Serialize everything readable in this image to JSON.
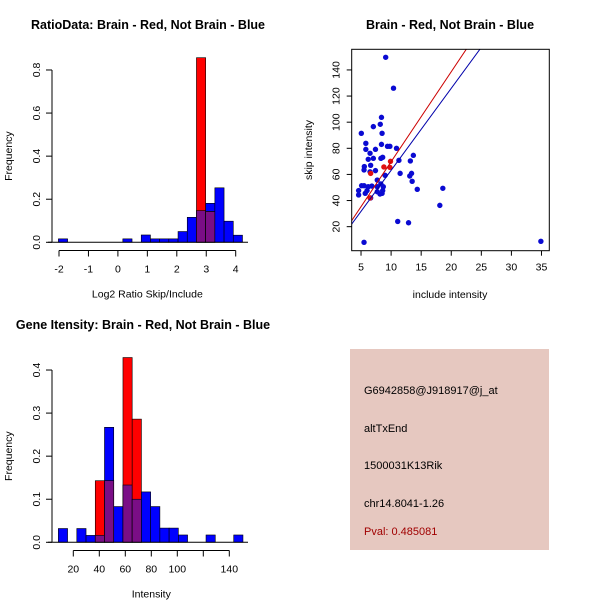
{
  "colors": {
    "blue": "#0000FF",
    "red": "#FF0000",
    "overlap": "#7A0E86",
    "scatter_blue": "#0A0AD2",
    "scatter_red": "#E01010",
    "line_red": "#CC0000",
    "line_blue": "#0000AA",
    "info_bg": "#E6C8C0",
    "pval": "#A00000"
  },
  "chart_data": [
    {
      "type": "bar",
      "subtype": "histogram-overlay",
      "title": "RatioData: Brain - Red, Not Brain - Blue",
      "xlabel": "Log2 Ratio Skip/Include",
      "ylabel": "Frequency",
      "xlim": [
        -2.2,
        4.4
      ],
      "ylim": [
        0,
        0.86
      ],
      "xticks": [
        -2,
        -1,
        0,
        1,
        2,
        3,
        4
      ],
      "yticks": [
        0.0,
        0.2,
        0.4,
        0.6,
        0.8
      ],
      "ytick_labels": [
        "0.0",
        "0.2",
        "0.4",
        "0.6",
        "0.8"
      ],
      "bin_start": -2.02,
      "bin_width": 0.3125,
      "series": [
        {
          "name": "Not Brain",
          "color": "blue",
          "values": [
            0.016,
            0,
            0,
            0,
            0,
            0,
            0,
            0.016,
            0,
            0.034,
            0.016,
            0.016,
            0.016,
            0.05,
            0.116,
            0.147,
            0.181,
            0.253,
            0.098,
            0.033
          ]
        },
        {
          "name": "Brain",
          "color": "red",
          "values": [
            0,
            0,
            0,
            0,
            0,
            0,
            0,
            0,
            0,
            0,
            0,
            0,
            0,
            0,
            0,
            0.857,
            0.143,
            0,
            0,
            0
          ]
        }
      ]
    },
    {
      "type": "scatter",
      "title": "Brain - Red, Not Brain - Blue",
      "xlabel": "include intensity",
      "ylabel": "skip intensity",
      "xlim": [
        3.45,
        36.3
      ],
      "ylim": [
        1.6,
        155.8
      ],
      "xticks": [
        5,
        10,
        15,
        20,
        25,
        30,
        35
      ],
      "yticks": [
        20,
        40,
        60,
        80,
        100,
        120,
        140
      ],
      "series": [
        {
          "name": "Not Brain",
          "color": "blue",
          "points": [
            [
              9.1,
              149.7
            ],
            [
              10.4,
              126
            ],
            [
              5.05,
              91.5
            ],
            [
              7.05,
              96.6
            ],
            [
              8.2,
              98.4
            ],
            [
              8.4,
              103.7
            ],
            [
              8.5,
              91.5
            ],
            [
              5.8,
              83.8
            ],
            [
              5.8,
              79.2
            ],
            [
              7.4,
              79.2
            ],
            [
              8.4,
              83
            ],
            [
              9.4,
              81.5
            ],
            [
              9.8,
              81.5
            ],
            [
              10.9,
              80
            ],
            [
              6.5,
              76.2
            ],
            [
              6.2,
              71.6
            ],
            [
              7.05,
              72.3
            ],
            [
              8.3,
              72.3
            ],
            [
              8.6,
              73.1
            ],
            [
              6.6,
              67
            ],
            [
              11.3,
              70.8
            ],
            [
              13.2,
              70.3
            ],
            [
              13.7,
              74.6
            ],
            [
              5.55,
              66
            ],
            [
              5.5,
              63.4
            ],
            [
              7.4,
              62.9
            ],
            [
              6.5,
              62
            ],
            [
              11.5,
              60.8
            ],
            [
              13.4,
              60.8
            ],
            [
              13.1,
              58.8
            ],
            [
              9.0,
              59.3
            ],
            [
              7.7,
              55.7
            ],
            [
              13.5,
              54.7
            ],
            [
              8.3,
              52.7
            ],
            [
              5.1,
              51.4
            ],
            [
              5.5,
              51.4
            ],
            [
              6.2,
              50.6
            ],
            [
              6.8,
              51.1
            ],
            [
              7.7,
              50.6
            ],
            [
              8.7,
              50.6
            ],
            [
              14.35,
              48.6
            ],
            [
              18.6,
              49.4
            ],
            [
              4.6,
              47.6
            ],
            [
              6.0,
              47.6
            ],
            [
              7.7,
              46.8
            ],
            [
              8.6,
              47.6
            ],
            [
              4.6,
              44.3
            ],
            [
              5.7,
              45.5
            ],
            [
              8.15,
              45
            ],
            [
              8.5,
              45.5
            ],
            [
              6.6,
              42
            ],
            [
              18.1,
              36.3
            ],
            [
              11.1,
              24
            ],
            [
              12.9,
              23
            ],
            [
              5.5,
              8
            ],
            [
              34.9,
              8.8
            ]
          ]
        },
        {
          "name": "Brain",
          "color": "red",
          "points": [
            [
              6.6,
              60.8
            ],
            [
              8.8,
              65.7
            ],
            [
              9.9,
              70
            ],
            [
              9.8,
              65.4
            ],
            [
              6.5,
              42
            ]
          ]
        }
      ],
      "fit_lines": [
        {
          "name": "Brain fit",
          "color": "line_red",
          "slope": 6.89,
          "intercept": 0.83
        },
        {
          "name": "Not Brain fit",
          "color": "line_blue",
          "slope": 6.28,
          "intercept": 0.33
        }
      ]
    },
    {
      "type": "bar",
      "subtype": "histogram-overlay",
      "title": "Gene Itensity: Brain - Red, Not Brain - Blue",
      "xlabel": "Intensity",
      "ylabel": "Frequency",
      "xlim": [
        0,
        160
      ],
      "ylim": [
        0,
        0.43
      ],
      "xticks": [
        20,
        40,
        60,
        80,
        100,
        120,
        140
      ],
      "xtick_labels": [
        "20",
        "40",
        "60",
        "80",
        "100",
        "",
        "140"
      ],
      "yticks": [
        0.0,
        0.1,
        0.2,
        0.3,
        0.4
      ],
      "ytick_labels": [
        "0.0",
        "0.1",
        "0.2",
        "0.3",
        "0.4"
      ],
      "bin_start": 8.5,
      "bin_width": 7.1,
      "series": [
        {
          "name": "Not Brain",
          "color": "blue",
          "values": [
            0.032,
            0,
            0.032,
            0.016,
            0.016,
            0.267,
            0.083,
            0.133,
            0.1,
            0.117,
            0.083,
            0.033,
            0.033,
            0.017,
            0,
            0,
            0.017,
            0,
            0,
            0.017
          ]
        },
        {
          "name": "Brain",
          "color": "red",
          "values": [
            0,
            0,
            0,
            0,
            0.143,
            0.143,
            0,
            0.429,
            0.286,
            0,
            0,
            0,
            0,
            0,
            0,
            0,
            0,
            0,
            0,
            0
          ]
        }
      ]
    }
  ],
  "info_panel": {
    "probe_id": "G6942858@J918917@j_at",
    "event_type": "altTxEnd",
    "gene": "1500031K13Rik",
    "location": "chr14.8041-1.26",
    "pval": "Pval: 0.485081"
  }
}
